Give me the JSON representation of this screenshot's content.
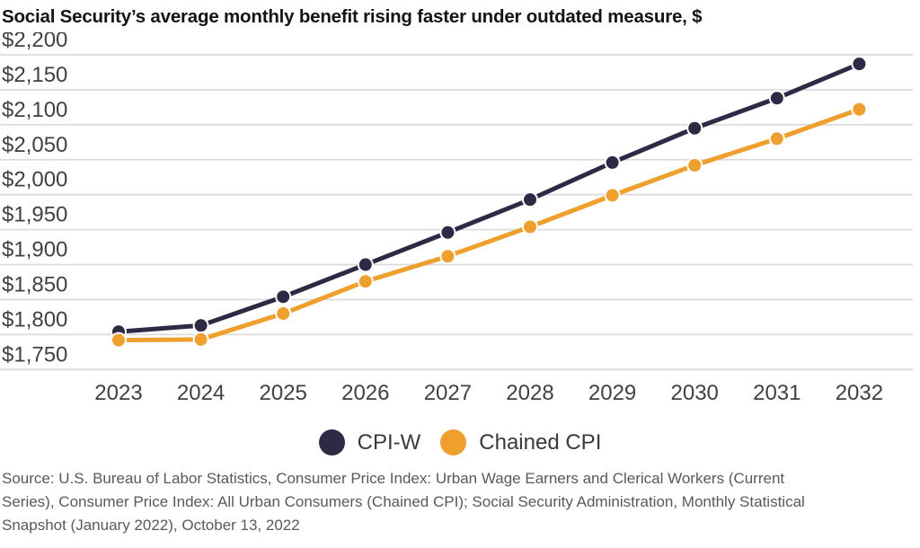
{
  "header": {
    "title": "Social Security’s average monthly benefit rising faster under outdated measure, $"
  },
  "chart_data": {
    "type": "line",
    "title": "Social Security’s average monthly benefit rising faster under outdated measure, $",
    "x": [
      "2023",
      "2024",
      "2025",
      "2026",
      "2027",
      "2028",
      "2029",
      "2030",
      "2031",
      "2032"
    ],
    "series": [
      {
        "name": "CPI-W",
        "color": "#2e2945",
        "values": [
          1804,
          1813,
          1854,
          1900,
          1946,
          1993,
          2046,
          2095,
          2138,
          2187
        ]
      },
      {
        "name": "Chained CPI",
        "color": "#ef9f2d",
        "values": [
          1792,
          1793,
          1830,
          1876,
          1912,
          1954,
          1999,
          2042,
          2080,
          2122
        ]
      }
    ],
    "ylim": [
      1750,
      2200
    ],
    "ytick_step": 50,
    "yticks": [
      {
        "value": 2200,
        "label": "$2,200"
      },
      {
        "value": 2150,
        "label": "$2,150"
      },
      {
        "value": 2100,
        "label": "$2,100"
      },
      {
        "value": 2050,
        "label": "$2,050"
      },
      {
        "value": 2000,
        "label": "$2,000"
      },
      {
        "value": 1950,
        "label": "$1,950"
      },
      {
        "value": 1900,
        "label": "$1,900"
      },
      {
        "value": 1850,
        "label": "$1,850"
      },
      {
        "value": 1800,
        "label": "$1,800"
      },
      {
        "value": 1750,
        "label": "$1,750"
      }
    ],
    "grid": true,
    "legend_position": "bottom",
    "xlabel": "",
    "ylabel": ""
  },
  "footer": {
    "source_lines": [
      "Source: U.S. Bureau of Labor Statistics, Consumer Price Index: Urban Wage Earners and Clerical Workers (Current",
      "Series), Consumer Price Index: All Urban Consumers (Chained CPI); Social Security Administration, Monthly Statistical",
      "Snapshot (January 2022), October 13, 2022"
    ]
  },
  "colors": {
    "cpiw_line": "#2e2945",
    "chained_cpi_line": "#ef9f2d",
    "gridline": "#dcdcdc",
    "axis_text": "#414141",
    "title_text": "#141414",
    "source_text": "#59595b",
    "background": "#ffffff"
  }
}
